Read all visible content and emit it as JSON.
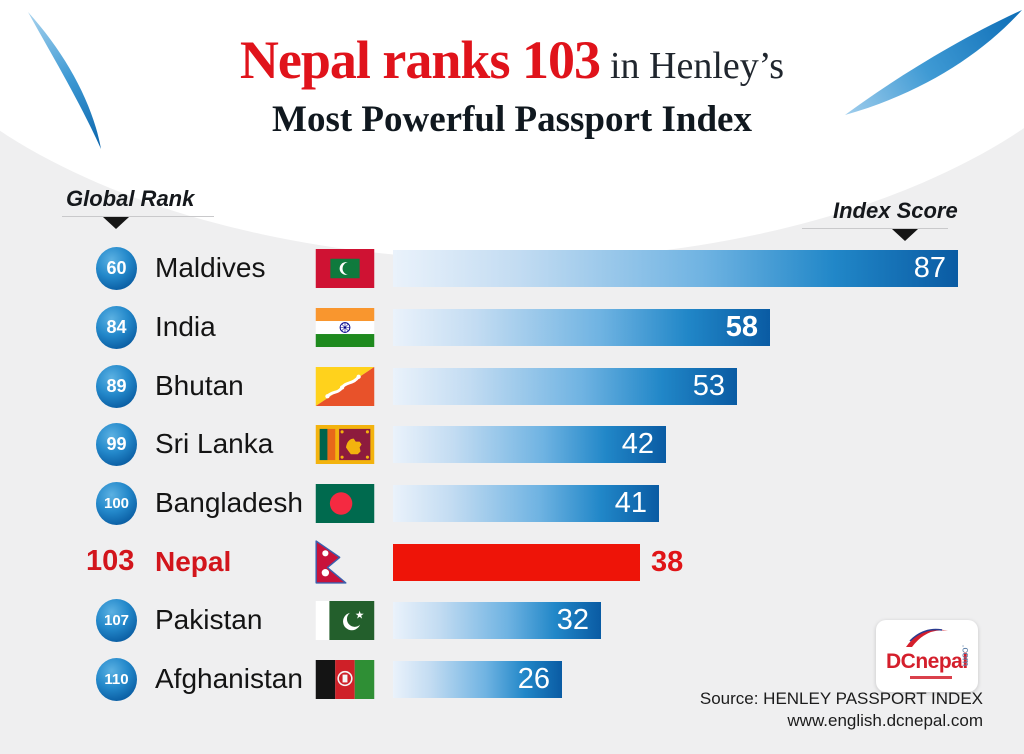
{
  "title": {
    "highlight": "Nepal ranks 103",
    "suffix": "in Henley’s",
    "line2": "Most Powerful Passport Index"
  },
  "axis": {
    "left_label": "Global Rank",
    "right_label": "Index Score"
  },
  "chart_data": {
    "type": "bar",
    "orientation": "horizontal",
    "title": "Nepal ranks 103 in Henley’s Most Powerful Passport Index",
    "category_label": "Global Rank",
    "value_label": "Index Score",
    "categories": [
      "Maldives",
      "India",
      "Bhutan",
      "Sri Lanka",
      "Bangladesh",
      "Nepal",
      "Pakistan",
      "Afghanistan"
    ],
    "global_ranks": [
      60,
      84,
      89,
      99,
      100,
      103,
      107,
      110
    ],
    "values": [
      87,
      58,
      53,
      42,
      41,
      38,
      32,
      26
    ],
    "xlim": [
      0,
      87
    ],
    "grid": false,
    "legend": false,
    "highlight": {
      "category": "Nepal",
      "rank": 103,
      "value": 38,
      "color": "#ee1408"
    },
    "bar_gradient": [
      "#eaf2fb",
      "#0a5ba3"
    ]
  },
  "rows": [
    {
      "rank": "60",
      "country": "Maldives",
      "score": "87"
    },
    {
      "rank": "84",
      "country": "India",
      "score": "58"
    },
    {
      "rank": "89",
      "country": "Bhutan",
      "score": "53"
    },
    {
      "rank": "99",
      "country": "Sri Lanka",
      "score": "42"
    },
    {
      "rank": "100",
      "country": "Bangladesh",
      "score": "41"
    },
    {
      "rank": "103",
      "country": "Nepal",
      "score": "38"
    },
    {
      "rank": "107",
      "country": "Pakistan",
      "score": "32"
    },
    {
      "rank": "110",
      "country": "Afghanistan",
      "score": "26"
    }
  ],
  "footer": {
    "logo_text": "DCnepal",
    "logo_com": ".com",
    "source": "Source: HENLEY PASSPORT INDEX",
    "website": "www.english.dcnepal.com"
  },
  "colors": {
    "background": "#efeff0",
    "title_red": "#e0131b",
    "bar_dark_blue": "#0a5ba3",
    "nepal_red": "#ee1408",
    "badge_blue": "#0b5fa4"
  }
}
